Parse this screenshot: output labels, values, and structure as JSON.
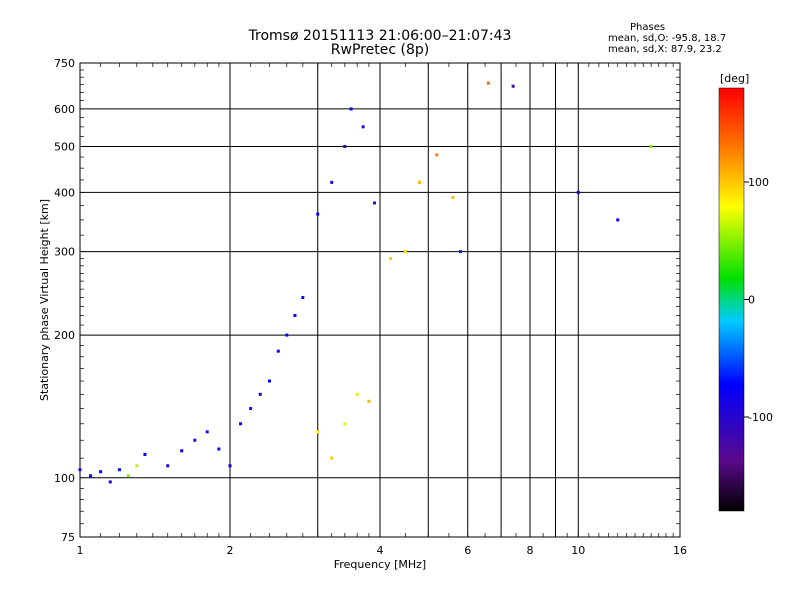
{
  "header": {
    "title": "Tromsø 20151113 21:06:00–21:07:43",
    "subtitle": "RwPretec (8p)",
    "stats_heading": "Phases",
    "stats_o": "mean, sd,O: -95.8, 18.7",
    "stats_x": "mean, sd,X: 87.9, 23.2"
  },
  "chart_data": {
    "type": "scatter",
    "title": "Tromsø 20151113 21:06:00–21:07:43",
    "subtitle": "RwPretec (8p)",
    "xlabel": "Frequency [MHz]",
    "ylabel": "Stationary phase Virtual Height [km]",
    "x_scale": "log",
    "y_scale": "log",
    "xlim": [
      1,
      16
    ],
    "ylim": [
      75,
      750
    ],
    "x_ticks": [
      1,
      2,
      4,
      6,
      8,
      10,
      16
    ],
    "x_tick_labels": [
      "1",
      "2",
      "4",
      "6",
      "8",
      "10",
      "16"
    ],
    "x_gridlines": [
      1,
      2,
      3,
      4,
      5,
      6,
      7,
      8,
      9,
      10
    ],
    "y_ticks": [
      75,
      100,
      200,
      300,
      400,
      500,
      600,
      750
    ],
    "y_tick_labels": [
      "75",
      "100",
      "200",
      "300",
      "400",
      "500",
      "600",
      "750"
    ],
    "grid": true,
    "colorbar": {
      "label": "[deg]",
      "range": [
        -180,
        180
      ],
      "ticks": [
        -100,
        0,
        100
      ],
      "tick_labels": [
        "-100",
        "0",
        "100"
      ],
      "position": "right"
    },
    "series": [
      {
        "values": [
          {
            "x": 1.0,
            "y": 104,
            "phase": -110
          },
          {
            "x": 1.05,
            "y": 101,
            "phase": -105
          },
          {
            "x": 1.1,
            "y": 103,
            "phase": -100
          },
          {
            "x": 1.15,
            "y": 98,
            "phase": -110
          },
          {
            "x": 1.2,
            "y": 104,
            "phase": -95
          },
          {
            "x": 1.25,
            "y": 101,
            "phase": 40
          },
          {
            "x": 1.3,
            "y": 106,
            "phase": 60
          },
          {
            "x": 1.35,
            "y": 112,
            "phase": -100
          },
          {
            "x": 1.5,
            "y": 106,
            "phase": -110
          },
          {
            "x": 1.6,
            "y": 114,
            "phase": -100
          },
          {
            "x": 1.7,
            "y": 120,
            "phase": -115
          },
          {
            "x": 1.8,
            "y": 125,
            "phase": -110
          },
          {
            "x": 1.9,
            "y": 115,
            "phase": -100
          },
          {
            "x": 2.0,
            "y": 106,
            "phase": -110
          },
          {
            "x": 2.1,
            "y": 130,
            "phase": -105
          },
          {
            "x": 2.2,
            "y": 140,
            "phase": -95
          },
          {
            "x": 2.3,
            "y": 150,
            "phase": -110
          },
          {
            "x": 2.4,
            "y": 160,
            "phase": -100
          },
          {
            "x": 2.5,
            "y": 185,
            "phase": -105
          },
          {
            "x": 2.6,
            "y": 200,
            "phase": -100
          },
          {
            "x": 2.7,
            "y": 220,
            "phase": -110
          },
          {
            "x": 2.8,
            "y": 240,
            "phase": -95
          },
          {
            "x": 3.0,
            "y": 125,
            "phase": 80
          },
          {
            "x": 3.2,
            "y": 110,
            "phase": 100
          },
          {
            "x": 3.4,
            "y": 130,
            "phase": 70
          },
          {
            "x": 3.6,
            "y": 150,
            "phase": 90
          },
          {
            "x": 3.8,
            "y": 145,
            "phase": 110
          },
          {
            "x": 3.0,
            "y": 360,
            "phase": -100
          },
          {
            "x": 3.2,
            "y": 420,
            "phase": -110
          },
          {
            "x": 3.4,
            "y": 500,
            "phase": -120
          },
          {
            "x": 3.5,
            "y": 600,
            "phase": -105
          },
          {
            "x": 3.7,
            "y": 550,
            "phase": -115
          },
          {
            "x": 3.9,
            "y": 380,
            "phase": -125
          },
          {
            "x": 4.2,
            "y": 290,
            "phase": 100
          },
          {
            "x": 4.5,
            "y": 300,
            "phase": 95
          },
          {
            "x": 4.8,
            "y": 420,
            "phase": 110
          },
          {
            "x": 5.2,
            "y": 480,
            "phase": 130
          },
          {
            "x": 5.6,
            "y": 390,
            "phase": 105
          },
          {
            "x": 5.8,
            "y": 300,
            "phase": -90
          },
          {
            "x": 6.6,
            "y": 680,
            "phase": 140
          },
          {
            "x": 7.4,
            "y": 670,
            "phase": -130
          },
          {
            "x": 10.0,
            "y": 400,
            "phase": -110
          },
          {
            "x": 12.0,
            "y": 350,
            "phase": -105
          },
          {
            "x": 14.0,
            "y": 500,
            "phase": 40
          }
        ]
      }
    ]
  }
}
